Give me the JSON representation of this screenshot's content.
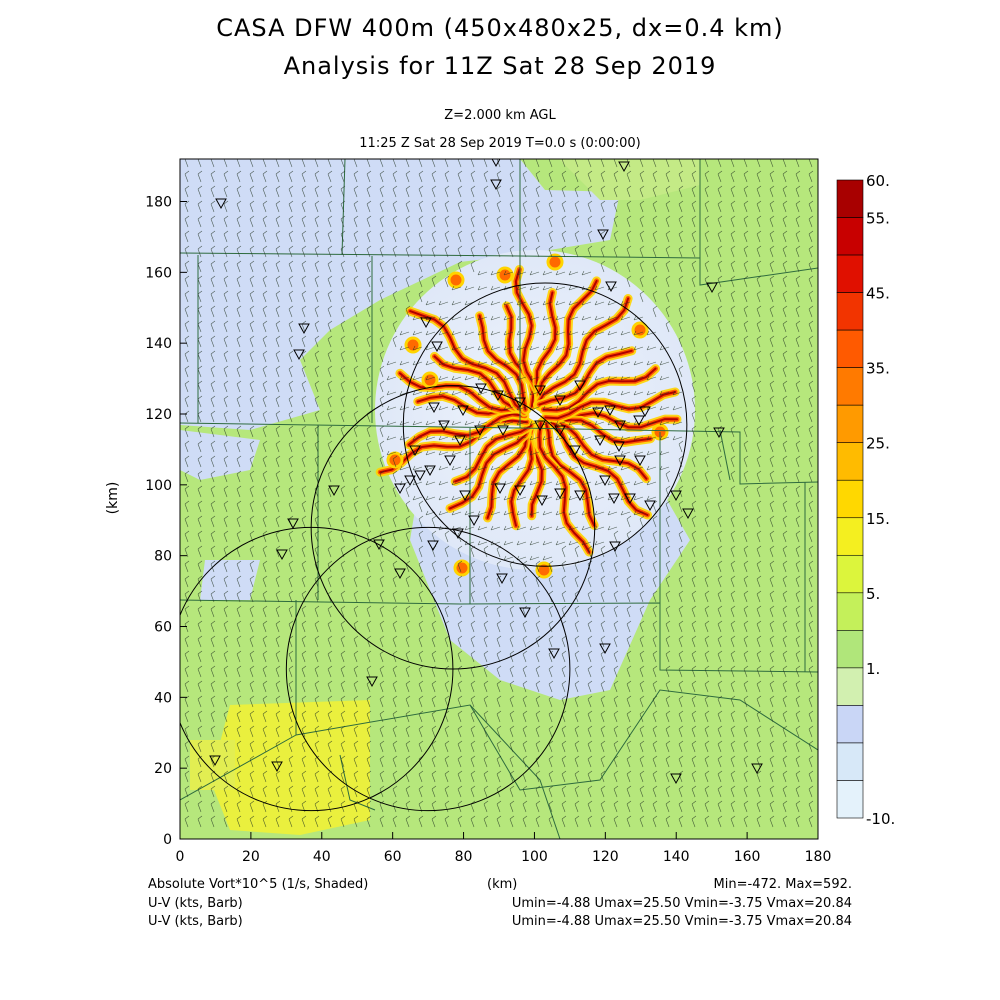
{
  "header": {
    "title": "CASA DFW 400m (450x480x25, dx=0.4 km)",
    "subtitle": "Analysis for 11Z Sat 28 Sep 2019",
    "level": "Z=2.000 km AGL",
    "time": "11:25 Z Sat 28 Sep 2019    T=0.0 s (0:00:00)"
  },
  "chart_data": {
    "type": "heatmap",
    "xlabel": "(km)",
    "ylabel": "(km)",
    "xlim": [
      0,
      180
    ],
    "ylim": [
      0,
      192
    ],
    "x_ticks": [
      0,
      20,
      40,
      60,
      80,
      100,
      120,
      140,
      160,
      180
    ],
    "y_ticks": [
      0,
      20,
      40,
      60,
      80,
      100,
      120,
      140,
      160,
      180
    ],
    "colorbar": {
      "tick_labels": [
        "60.",
        "55.",
        "45.",
        "35.",
        "25.",
        "15.",
        "5.",
        "1.",
        "-10."
      ],
      "colors": [
        "#a80000",
        "#c80000",
        "#e01000",
        "#f23400",
        "#ff5a00",
        "#ff7a00",
        "#ff9a00",
        "#ffbb00",
        "#ffd800",
        "#f4ef20",
        "#dcf53c",
        "#c4f05a",
        "#b0e67a",
        "#d2f0b0",
        "#c9d6f6",
        "#d7e8f8",
        "#e4f2fb"
      ]
    },
    "annotations": {
      "field": "Absolute Vort*10^5 (1/s, Shaded)",
      "stats": "Min=-472. Max=592.",
      "wind1": "U-V (kts, Barb)",
      "wind1_stats": "Umin=-4.88 Umax=25.50 Vmin=-3.75 Vmax=20.84",
      "wind2": "U-V (kts, Barb)",
      "wind2_stats": "Umin=-4.88 Umax=25.50 Vmin=-3.75 Vmax=20.84",
      "xaxis_unit": "(km)"
    },
    "radar_range_rings": [
      {
        "center_km": [
          103,
          117
        ],
        "radius_km": 40
      },
      {
        "center_km": [
          77,
          88
        ],
        "radius_km": 40
      },
      {
        "center_km": [
          37,
          48
        ],
        "radius_km": 40
      },
      {
        "center_km": [
          70,
          48
        ],
        "radius_km": 40
      }
    ]
  },
  "colors": {
    "base_green": "#b6e77c",
    "light_blue": "#cfdcf6",
    "yellow": "#ecf23a",
    "boundary": "#2e6b3e",
    "frame": "#000000"
  }
}
